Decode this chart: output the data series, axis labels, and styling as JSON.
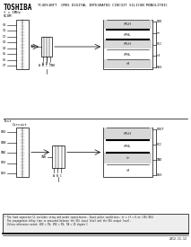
{
  "title_left": "TOSHIBA",
  "title_right": "TC4051BFT  CMOS DIGITAL INTEGRATED CIRCUIT SILICON MONOLITHIC",
  "bg_color": "#ffffff",
  "line_color": "#000000",
  "page_num": "2012-11-12",
  "sect1_label1": "f = 1MHz",
  "sect1_label2": "VCOM",
  "sect2_label": "Test",
  "footer_lines": [
    "* The load capacitor CL includes stray and probe capacitances. Input pulse conditions: tr = tf = 6 ns (10%-90%)",
    "  The propagation delay time is measured between the 50% input level and the 50% output level.",
    "  Unless otherwise noted: VDD = 5V, VSS = 0V, TA = 25 degree C"
  ]
}
